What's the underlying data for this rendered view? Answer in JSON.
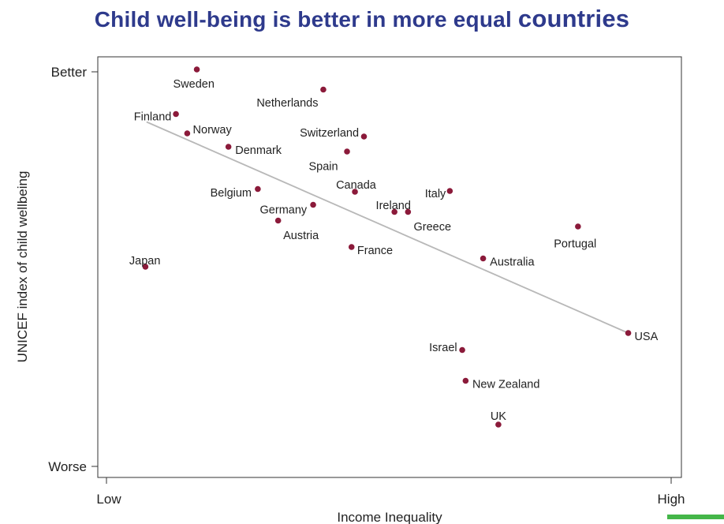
{
  "title_main": "Child well-being is better in more equal",
  "title_emphasis": "countries",
  "chart_data": {
    "type": "scatter",
    "title": "Child well-being is better in more equal countries",
    "xlabel": "Income Inequality",
    "ylabel": "UNICEF index of child wellbeing",
    "x_tick_labels": [
      "Low",
      "High"
    ],
    "y_tick_labels": [
      "Better",
      "Worse"
    ],
    "xlim": [
      0,
      100
    ],
    "ylim": [
      0,
      100
    ],
    "grid": false,
    "legend": "none",
    "point_color": "#8b1a3a",
    "trend_line_color": "#b8b8b8",
    "points": [
      {
        "label": "Sweden",
        "x": 16.0,
        "y": 100.6,
        "lx": 11.8,
        "ly": 97.0,
        "anchor": "start"
      },
      {
        "label": "Netherlands",
        "x": 38.4,
        "y": 95.5,
        "lx": 37.5,
        "ly": 92.2,
        "anchor": "end"
      },
      {
        "label": "Finland",
        "x": 12.3,
        "y": 89.3,
        "lx": 11.5,
        "ly": 88.7,
        "anchor": "end"
      },
      {
        "label": "Norway",
        "x": 14.3,
        "y": 84.4,
        "lx": 15.3,
        "ly": 85.4,
        "anchor": "start"
      },
      {
        "label": "Switzerland",
        "x": 45.6,
        "y": 83.6,
        "lx": 44.7,
        "ly": 84.6,
        "anchor": "end"
      },
      {
        "label": "Denmark",
        "x": 21.6,
        "y": 81.0,
        "lx": 22.8,
        "ly": 80.2,
        "anchor": "start"
      },
      {
        "label": "Spain",
        "x": 42.6,
        "y": 79.8,
        "lx": 41.0,
        "ly": 76.1,
        "anchor": "end"
      },
      {
        "label": "Canada",
        "x": 44.0,
        "y": 69.6,
        "lx": 44.2,
        "ly": 71.4,
        "anchor": "middle"
      },
      {
        "label": "Belgium",
        "x": 26.8,
        "y": 70.3,
        "lx": 25.7,
        "ly": 69.4,
        "anchor": "end"
      },
      {
        "label": "Italy",
        "x": 60.8,
        "y": 69.8,
        "lx": 60.1,
        "ly": 69.2,
        "anchor": "end"
      },
      {
        "label": "Germany",
        "x": 36.6,
        "y": 66.3,
        "lx": 35.5,
        "ly": 65.1,
        "anchor": "end"
      },
      {
        "label": "Ireland",
        "x": 51.0,
        "y": 64.5,
        "lx": 50.8,
        "ly": 66.2,
        "anchor": "middle"
      },
      {
        "label": "Greece",
        "x": 53.4,
        "y": 64.5,
        "lx": 54.4,
        "ly": 60.8,
        "anchor": "start"
      },
      {
        "label": "Austria",
        "x": 30.4,
        "y": 62.3,
        "lx": 31.3,
        "ly": 58.6,
        "anchor": "start"
      },
      {
        "label": "Portugal",
        "x": 83.5,
        "y": 60.8,
        "lx": 83.0,
        "ly": 56.5,
        "anchor": "middle"
      },
      {
        "label": "France",
        "x": 43.4,
        "y": 55.6,
        "lx": 44.4,
        "ly": 54.8,
        "anchor": "start"
      },
      {
        "label": "Australia",
        "x": 66.7,
        "y": 52.7,
        "lx": 67.9,
        "ly": 51.9,
        "anchor": "start"
      },
      {
        "label": "Japan",
        "x": 6.9,
        "y": 50.6,
        "lx": 6.8,
        "ly": 52.2,
        "anchor": "middle"
      },
      {
        "label": "USA",
        "x": 92.4,
        "y": 33.8,
        "lx": 93.5,
        "ly": 33.0,
        "anchor": "start"
      },
      {
        "label": "Israel",
        "x": 63.0,
        "y": 29.5,
        "lx": 62.1,
        "ly": 30.2,
        "anchor": "end"
      },
      {
        "label": "New Zealand",
        "x": 63.6,
        "y": 21.7,
        "lx": 64.8,
        "ly": 20.9,
        "anchor": "start"
      },
      {
        "label": "UK",
        "x": 69.4,
        "y": 10.6,
        "lx": 69.4,
        "ly": 12.8,
        "anchor": "middle"
      }
    ],
    "trend_line": {
      "x": [
        7.1,
        92.4
      ],
      "y": [
        87.3,
        33.8
      ]
    }
  }
}
